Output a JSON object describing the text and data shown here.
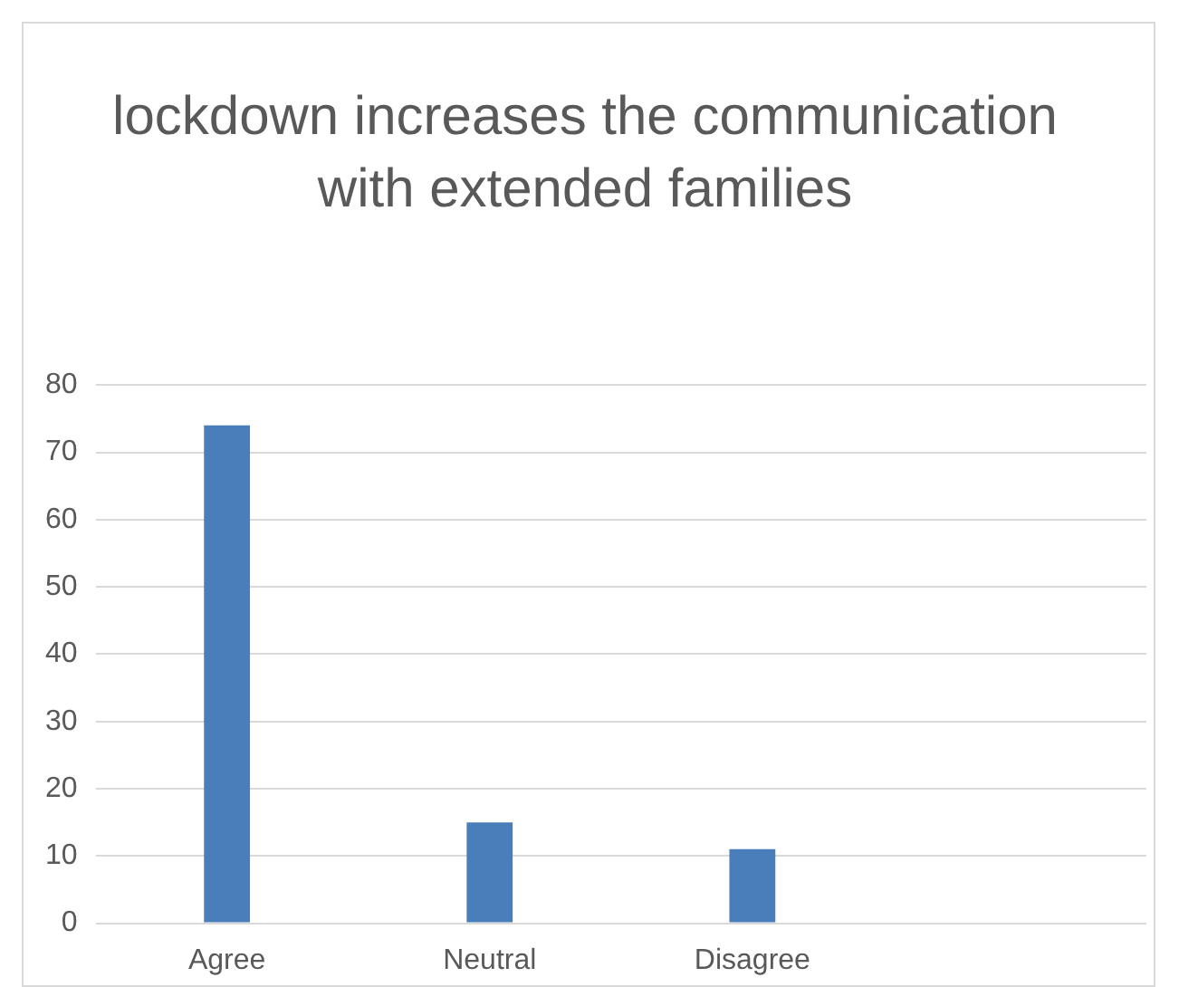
{
  "chart_data": {
    "type": "bar",
    "title": "lockdown increases the communication with extended families",
    "categories": [
      "Agree",
      "Neutral",
      "Disagree",
      null
    ],
    "values": [
      74,
      15,
      11,
      null
    ],
    "color": "#4a7ebb",
    "ylim": [
      0,
      80
    ],
    "yticks": [
      0,
      10,
      20,
      30,
      40,
      50,
      60,
      70,
      80
    ],
    "grid": "y",
    "legend": false
  }
}
